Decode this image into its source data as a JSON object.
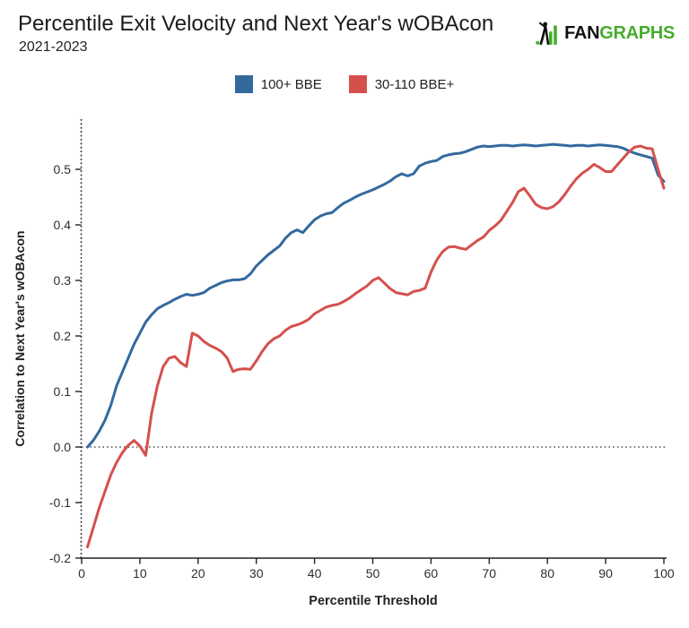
{
  "header": {
    "title": "Percentile Exit Velocity and Next Year's wOBAcon",
    "subtitle": "2021-2023",
    "logo": {
      "fan": "FAN",
      "graphs": "GRAPHS",
      "green": "#46ad2d",
      "black": "#111111"
    }
  },
  "legend": {
    "items": [
      {
        "label": "100+ BBE",
        "color": "#34699e"
      },
      {
        "label": "30-110 BBE+",
        "color": "#d5504d"
      }
    ]
  },
  "chart_data": {
    "type": "line",
    "title": "Percentile Exit Velocity and Next Year's wOBAcon",
    "subtitle": "2021-2023",
    "xlabel": "Percentile Threshold",
    "ylabel": "Correlation to Next Year's wOBAcon",
    "xlim": [
      0,
      100
    ],
    "ylim": [
      -0.2,
      0.55
    ],
    "x_ticks": [
      0,
      10,
      20,
      30,
      40,
      50,
      60,
      70,
      80,
      90,
      100
    ],
    "y_ticks": [
      -0.2,
      -0.1,
      0.0,
      0.1,
      0.2,
      0.3,
      0.4,
      0.5
    ],
    "y_tick_labels": [
      "-0.2",
      "-0.1",
      "0.0",
      "0.1",
      "0.2",
      "0.3",
      "0.4",
      "0.5"
    ],
    "grid": false,
    "zero_line": true,
    "legend_position": "top-center",
    "series": [
      {
        "name": "100+ BBE",
        "color": "#34699e",
        "x_start": 1,
        "x_step": 1,
        "values": [
          0.0,
          0.012,
          0.028,
          0.048,
          0.075,
          0.11,
          0.135,
          0.16,
          0.185,
          0.205,
          0.225,
          0.238,
          0.249,
          0.255,
          0.26,
          0.266,
          0.271,
          0.275,
          0.273,
          0.275,
          0.278,
          0.286,
          0.291,
          0.296,
          0.299,
          0.301,
          0.301,
          0.303,
          0.312,
          0.326,
          0.336,
          0.346,
          0.354,
          0.362,
          0.376,
          0.386,
          0.391,
          0.386,
          0.398,
          0.409,
          0.416,
          0.42,
          0.422,
          0.431,
          0.439,
          0.444,
          0.45,
          0.455,
          0.459,
          0.463,
          0.468,
          0.473,
          0.479,
          0.487,
          0.492,
          0.488,
          0.492,
          0.506,
          0.511,
          0.514,
          0.516,
          0.523,
          0.526,
          0.528,
          0.529,
          0.532,
          0.536,
          0.54,
          0.542,
          0.541,
          0.542,
          0.543,
          0.543,
          0.542,
          0.543,
          0.544,
          0.543,
          0.542,
          0.543,
          0.544,
          0.545,
          0.544,
          0.543,
          0.542,
          0.543,
          0.543,
          0.542,
          0.543,
          0.544,
          0.543,
          0.542,
          0.541,
          0.538,
          0.533,
          0.529,
          0.526,
          0.523,
          0.52,
          0.49,
          0.478
        ]
      },
      {
        "name": "30-110 BBE+",
        "color": "#d5504d",
        "x_start": 1,
        "x_step": 1,
        "values": [
          -0.18,
          -0.145,
          -0.11,
          -0.08,
          -0.05,
          -0.028,
          -0.01,
          0.003,
          0.012,
          0.002,
          -0.015,
          0.06,
          0.11,
          0.145,
          0.16,
          0.163,
          0.152,
          0.145,
          0.205,
          0.2,
          0.19,
          0.183,
          0.178,
          0.172,
          0.16,
          0.136,
          0.14,
          0.141,
          0.14,
          0.155,
          0.172,
          0.186,
          0.195,
          0.2,
          0.21,
          0.217,
          0.22,
          0.224,
          0.23,
          0.24,
          0.246,
          0.252,
          0.255,
          0.257,
          0.262,
          0.268,
          0.276,
          0.283,
          0.29,
          0.3,
          0.305,
          0.295,
          0.285,
          0.278,
          0.276,
          0.274,
          0.28,
          0.282,
          0.286,
          0.315,
          0.337,
          0.352,
          0.36,
          0.361,
          0.358,
          0.356,
          0.364,
          0.372,
          0.378,
          0.39,
          0.398,
          0.408,
          0.424,
          0.44,
          0.46,
          0.466,
          0.452,
          0.437,
          0.431,
          0.429,
          0.433,
          0.442,
          0.455,
          0.47,
          0.483,
          0.493,
          0.5,
          0.509,
          0.503,
          0.496,
          0.496,
          0.508,
          0.52,
          0.532,
          0.54,
          0.542,
          0.538,
          0.537,
          0.5,
          0.466
        ]
      }
    ]
  }
}
